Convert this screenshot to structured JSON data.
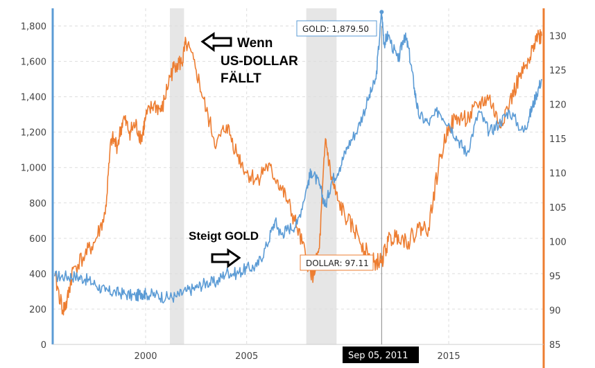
{
  "chart_data": {
    "type": "line",
    "x_range": [
      1995.4,
      2019.7
    ],
    "x_ticks": [
      "2000",
      "2005",
      "2015"
    ],
    "y_left": {
      "range": [
        0,
        1900
      ],
      "ticks": [
        "0",
        "200",
        "400",
        "600",
        "800",
        "1,000",
        "1,200",
        "1,400",
        "1,600",
        "1,800"
      ],
      "color": "#5b9bd5"
    },
    "y_right": {
      "range": [
        85,
        134
      ],
      "ticks": [
        "85",
        "90",
        "95",
        "100",
        "105",
        "110",
        "115",
        "120",
        "125",
        "130"
      ],
      "color": "#ed7d31"
    },
    "grid": true,
    "recessions": [
      [
        2001.2,
        2001.9
      ],
      [
        2007.95,
        2009.45
      ]
    ],
    "series": [
      {
        "name": "GOLD",
        "axis": "left",
        "color": "#5b9bd5",
        "x": [
          1995.5,
          1996.0,
          1996.5,
          1997.0,
          1997.5,
          1998.0,
          1998.5,
          1999.0,
          1999.5,
          1999.8,
          2000.0,
          2000.5,
          2001.0,
          2001.5,
          2002.0,
          2002.5,
          2003.0,
          2003.5,
          2004.0,
          2004.5,
          2005.0,
          2005.5,
          2006.0,
          2006.4,
          2006.7,
          2007.0,
          2007.5,
          2008.0,
          2008.2,
          2008.6,
          2008.9,
          2009.2,
          2009.6,
          2010.0,
          2010.5,
          2011.0,
          2011.4,
          2011.68,
          2011.8,
          2012.0,
          2012.5,
          2012.8,
          2013.0,
          2013.3,
          2013.5,
          2014.0,
          2014.5,
          2015.0,
          2015.5,
          2015.9,
          2016.5,
          2017.0,
          2017.5,
          2018.0,
          2018.7,
          2019.0,
          2019.3,
          2019.6
        ],
        "y": [
          385,
          385,
          385,
          370,
          340,
          300,
          295,
          285,
          270,
          290,
          285,
          280,
          265,
          270,
          300,
          320,
          350,
          350,
          410,
          400,
          430,
          440,
          560,
          700,
          620,
          650,
          680,
          900,
          980,
          900,
          780,
          920,
          1000,
          1120,
          1220,
          1380,
          1500,
          1879.5,
          1700,
          1750,
          1600,
          1750,
          1680,
          1450,
          1300,
          1250,
          1320,
          1250,
          1150,
          1080,
          1320,
          1200,
          1250,
          1320,
          1200,
          1290,
          1400,
          1500
        ]
      },
      {
        "name": "DOLLAR",
        "axis": "right",
        "color": "#ed7d31",
        "x": [
          1995.5,
          1995.9,
          1996.1,
          1996.4,
          1997.0,
          1997.5,
          1998.0,
          1998.3,
          1998.6,
          1998.9,
          1999.2,
          1999.5,
          1999.8,
          2000.0,
          2000.4,
          2000.8,
          2001.2,
          2001.5,
          2001.8,
          2002.0,
          2002.5,
          2003.0,
          2003.5,
          2004.0,
          2004.5,
          2005.0,
          2005.5,
          2006.0,
          2006.5,
          2007.0,
          2007.5,
          2008.0,
          2008.3,
          2008.6,
          2008.9,
          2009.2,
          2009.5,
          2010.0,
          2010.5,
          2011.0,
          2011.3,
          2011.68,
          2012.0,
          2012.5,
          2013.0,
          2013.5,
          2014.0,
          2014.5,
          2015.0,
          2015.5,
          2016.0,
          2016.5,
          2017.0,
          2017.5,
          2018.0,
          2018.5,
          2019.0,
          2019.3,
          2019.6
        ],
        "y": [
          95,
          90,
          91,
          96,
          98,
          100,
          104,
          115,
          114,
          118,
          116,
          117,
          115,
          118,
          120,
          119,
          124,
          126,
          126,
          129,
          125,
          119,
          114,
          117,
          113,
          110,
          109,
          111,
          109,
          106,
          102,
          97,
          95,
          99,
          115,
          109,
          106,
          103,
          101,
          98,
          97,
          97.11,
          100,
          101,
          100,
          102,
          102,
          111,
          117,
          118,
          118,
          120,
          121,
          117,
          120,
          124,
          126,
          130,
          130
        ]
      }
    ],
    "tooltips": {
      "gold": "GOLD: 1,879.50",
      "dollar": "DOLLAR: 97.11",
      "date": "Sep 05, 2011"
    },
    "crosshair_x": 2011.68,
    "annotations": {
      "top": [
        "Wenn",
        "US-DOLLAR",
        "FÄLLT"
      ],
      "bottom": "Steigt GOLD"
    }
  }
}
